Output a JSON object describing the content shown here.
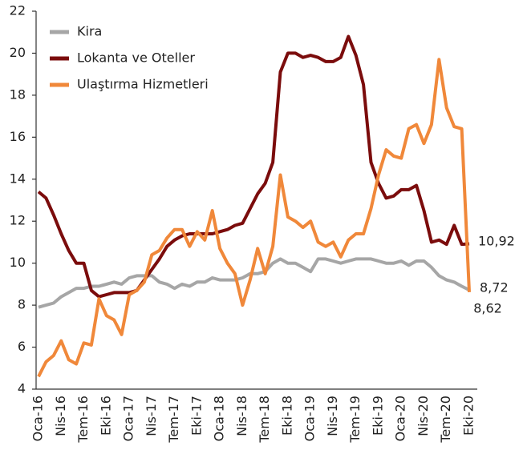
{
  "chart_data": {
    "type": "line",
    "categories": [
      "Oca-16",
      null,
      null,
      "Nis-16",
      null,
      null,
      "Tem-16",
      null,
      null,
      "Eki-16",
      null,
      null,
      "Oca-17",
      null,
      null,
      "Nis-17",
      null,
      null,
      "Tem-17",
      null,
      null,
      "Eki-17",
      null,
      null,
      "Oca-18",
      null,
      null,
      "Nis-18",
      null,
      null,
      "Tem-18",
      null,
      null,
      "Eki-18",
      null,
      null,
      "Oca-19",
      null,
      null,
      "Nis-19",
      null,
      null,
      "Tem-19",
      null,
      null,
      "Eki-19",
      null,
      null,
      "Oca-20",
      null,
      null,
      "Nis-20",
      null,
      null,
      "Tem-20",
      null,
      null,
      "Eki-20"
    ],
    "series": [
      {
        "name": "Kira",
        "color": "#a6a6a6",
        "values": [
          7.9,
          8.0,
          8.1,
          8.4,
          8.6,
          8.8,
          8.8,
          8.9,
          8.9,
          9.0,
          9.1,
          9.0,
          9.3,
          9.4,
          9.4,
          9.4,
          9.1,
          9.0,
          8.8,
          9.0,
          8.9,
          9.1,
          9.1,
          9.3,
          9.2,
          9.2,
          9.2,
          9.3,
          9.5,
          9.5,
          9.6,
          10.0,
          10.2,
          10.0,
          10.0,
          9.8,
          9.6,
          10.2,
          10.2,
          10.1,
          10.0,
          10.1,
          10.2,
          10.2,
          10.2,
          10.1,
          10.0,
          10.0,
          10.1,
          9.9,
          10.1,
          10.1,
          9.8,
          9.4,
          9.2,
          9.1,
          8.9,
          8.72
        ],
        "value_labels": [
          null,
          null,
          null,
          null,
          null,
          null,
          null,
          null,
          null,
          null,
          null,
          null,
          null,
          null,
          null,
          null,
          null,
          null,
          null,
          null,
          null,
          null,
          null,
          null,
          null,
          null,
          null,
          null,
          null,
          null,
          null,
          null,
          null,
          null,
          null,
          null,
          null,
          null,
          null,
          null,
          null,
          null,
          null,
          null,
          null,
          null,
          null,
          null,
          null,
          null,
          null,
          null,
          null,
          null,
          null,
          null,
          null,
          "8,72"
        ]
      },
      {
        "name": "Lokanta ve Oteller",
        "color": "#7b0c0c",
        "values": [
          13.4,
          13.1,
          12.3,
          11.4,
          10.6,
          10.0,
          10.0,
          8.7,
          8.4,
          8.5,
          8.6,
          8.6,
          8.6,
          8.7,
          9.2,
          9.7,
          10.2,
          10.8,
          11.1,
          11.3,
          11.4,
          11.4,
          11.4,
          11.4,
          11.5,
          11.6,
          11.8,
          11.9,
          12.6,
          13.3,
          13.8,
          14.8,
          19.1,
          20.0,
          20.0,
          19.8,
          19.9,
          19.8,
          19.6,
          19.6,
          19.8,
          20.8,
          19.9,
          18.5,
          14.8,
          13.8,
          13.1,
          13.2,
          13.5,
          13.5,
          13.7,
          12.5,
          11.0,
          11.1,
          10.9,
          11.8,
          10.9,
          10.92
        ],
        "value_labels": [
          null,
          null,
          null,
          null,
          null,
          null,
          null,
          null,
          null,
          null,
          null,
          null,
          null,
          null,
          null,
          null,
          null,
          null,
          null,
          null,
          null,
          null,
          null,
          null,
          null,
          null,
          null,
          null,
          null,
          null,
          null,
          null,
          null,
          null,
          null,
          null,
          null,
          null,
          null,
          null,
          null,
          null,
          null,
          null,
          null,
          null,
          null,
          null,
          null,
          null,
          null,
          null,
          null,
          null,
          null,
          null,
          null,
          "10,92"
        ]
      },
      {
        "name": "Ulaştırma Hizmetleri",
        "color": "#f0883a",
        "values": [
          4.6,
          5.3,
          5.6,
          6.3,
          5.4,
          5.2,
          6.2,
          6.1,
          8.3,
          7.5,
          7.3,
          6.6,
          8.5,
          8.7,
          9.1,
          10.4,
          10.6,
          11.2,
          11.6,
          11.6,
          10.8,
          11.5,
          11.1,
          12.5,
          10.7,
          10.0,
          9.5,
          8.0,
          9.2,
          10.7,
          9.5,
          10.8,
          14.2,
          12.2,
          12.0,
          11.7,
          12.0,
          11.0,
          10.8,
          11.0,
          10.3,
          11.1,
          11.4,
          11.4,
          12.6,
          14.2,
          15.4,
          15.1,
          15.0,
          16.4,
          16.6,
          15.7,
          16.6,
          19.7,
          17.4,
          16.5,
          16.4,
          8.62
        ],
        "value_labels": [
          null,
          null,
          null,
          null,
          null,
          null,
          null,
          null,
          null,
          null,
          null,
          null,
          null,
          null,
          null,
          null,
          null,
          null,
          null,
          null,
          null,
          null,
          null,
          null,
          null,
          null,
          null,
          null,
          null,
          null,
          null,
          null,
          null,
          null,
          null,
          null,
          null,
          null,
          null,
          null,
          null,
          null,
          null,
          null,
          null,
          null,
          null,
          null,
          null,
          null,
          null,
          null,
          null,
          null,
          null,
          null,
          null,
          "8,62"
        ]
      }
    ],
    "ylim": [
      4,
      22
    ],
    "yticks": [
      4,
      6,
      8,
      10,
      12,
      14,
      16,
      18,
      20,
      22
    ],
    "legend": "upper left"
  }
}
